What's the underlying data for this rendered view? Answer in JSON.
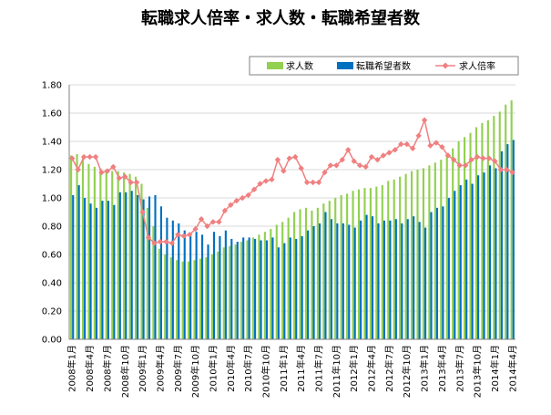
{
  "chart_data": {
    "type": "bar",
    "title": "転職求人倍率・求人数・転職希望者数",
    "ylim": [
      0,
      1.8
    ],
    "yticks": [
      "0.00",
      "0.20",
      "0.40",
      "0.60",
      "0.80",
      "1.00",
      "1.20",
      "1.40",
      "1.60",
      "1.80"
    ],
    "grid": true,
    "legend_position": "top-right",
    "colors": {
      "jobs": "#92d050",
      "seekers": "#0070c0",
      "ratio": "#f08080",
      "grid": "#d9d9d9"
    },
    "x": [
      "2008年1月",
      "2008年2月",
      "2008年3月",
      "2008年4月",
      "2008年5月",
      "2008年6月",
      "2008年7月",
      "2008年8月",
      "2008年9月",
      "2008年10月",
      "2008年11月",
      "2008年12月",
      "2009年1月",
      "2009年2月",
      "2009年3月",
      "2009年4月",
      "2009年5月",
      "2009年6月",
      "2009年7月",
      "2009年8月",
      "2009年9月",
      "2009年10月",
      "2009年11月",
      "2009年12月",
      "2010年1月",
      "2010年2月",
      "2010年3月",
      "2010年4月",
      "2010年5月",
      "2010年6月",
      "2010年7月",
      "2010年8月",
      "2010年9月",
      "2010年10月",
      "2010年11月",
      "2010年12月",
      "2011年1月",
      "2011年2月",
      "2011年3月",
      "2011年4月",
      "2011年5月",
      "2011年6月",
      "2011年7月",
      "2011年8月",
      "2011年9月",
      "2011年10月",
      "2011年11月",
      "2011年12月",
      "2012年1月",
      "2012年2月",
      "2012年3月",
      "2012年4月",
      "2012年5月",
      "2012年6月",
      "2012年7月",
      "2012年8月",
      "2012年9月",
      "2012年10月",
      "2012年11月",
      "2012年12月",
      "2013年1月",
      "2013年2月",
      "2013年3月",
      "2013年4月",
      "2013年5月",
      "2013年6月",
      "2013年7月",
      "2013年8月",
      "2013年9月",
      "2013年10月",
      "2013年11月",
      "2013年12月",
      "2014年1月",
      "2014年2月",
      "2014年3月",
      "2014年4月"
    ],
    "xtick_labels": [
      "2008年1月",
      "2008年4月",
      "2008年7月",
      "2008年10月",
      "2009年1月",
      "2009年4月",
      "2009年7月",
      "2009年10月",
      "2010年1月",
      "2010年4月",
      "2010年7月",
      "2010年10月",
      "2011年1月",
      "2011年4月",
      "2011年7月",
      "2011年10月",
      "2012年1月",
      "2012年4月",
      "2012年7月",
      "2012年10月",
      "2013年1月",
      "2013年4月",
      "2013年7月",
      "2013年10月",
      "2014年1月",
      "2014年4月"
    ],
    "series": [
      {
        "name": "求人数",
        "kind": "bar",
        "values": [
          1.3,
          1.31,
          1.28,
          1.24,
          1.22,
          1.21,
          1.2,
          1.19,
          1.19,
          1.18,
          1.17,
          1.15,
          1.1,
          0.93,
          0.8,
          0.64,
          0.6,
          0.58,
          0.56,
          0.55,
          0.55,
          0.56,
          0.57,
          0.58,
          0.6,
          0.62,
          0.65,
          0.66,
          0.67,
          0.69,
          0.7,
          0.72,
          0.74,
          0.76,
          0.78,
          0.81,
          0.83,
          0.86,
          0.9,
          0.92,
          0.93,
          0.91,
          0.93,
          0.96,
          0.98,
          1.0,
          1.02,
          1.03,
          1.05,
          1.06,
          1.07,
          1.07,
          1.08,
          1.09,
          1.12,
          1.13,
          1.15,
          1.17,
          1.19,
          1.2,
          1.21,
          1.23,
          1.25,
          1.27,
          1.31,
          1.35,
          1.4,
          1.43,
          1.46,
          1.5,
          1.53,
          1.55,
          1.58,
          1.61,
          1.66,
          1.69
        ]
      },
      {
        "name": "転職希望者数",
        "kind": "bar",
        "values": [
          1.02,
          1.09,
          1.0,
          0.96,
          0.93,
          0.98,
          0.98,
          0.95,
          1.04,
          1.04,
          1.05,
          1.02,
          0.99,
          1.01,
          1.02,
          0.94,
          0.86,
          0.84,
          0.82,
          0.77,
          0.73,
          0.76,
          0.74,
          0.67,
          0.76,
          0.73,
          0.77,
          0.71,
          0.69,
          0.72,
          0.72,
          0.71,
          0.7,
          0.7,
          0.72,
          0.65,
          0.68,
          0.72,
          0.71,
          0.73,
          0.77,
          0.8,
          0.82,
          0.9,
          0.85,
          0.82,
          0.82,
          0.81,
          0.79,
          0.84,
          0.88,
          0.87,
          0.82,
          0.84,
          0.84,
          0.85,
          0.82,
          0.85,
          0.87,
          0.83,
          0.79,
          0.9,
          0.93,
          0.94,
          1.0,
          1.05,
          1.09,
          1.13,
          1.1,
          1.16,
          1.18,
          1.23,
          1.21,
          1.33,
          1.38,
          1.41
        ]
      },
      {
        "name": "求人倍率",
        "kind": "line",
        "values": [
          1.28,
          1.2,
          1.29,
          1.29,
          1.29,
          1.18,
          1.19,
          1.22,
          1.14,
          1.15,
          1.11,
          1.11,
          0.9,
          0.72,
          0.68,
          0.69,
          0.69,
          0.68,
          0.74,
          0.73,
          0.74,
          0.78,
          0.85,
          0.8,
          0.83,
          0.83,
          0.91,
          0.95,
          0.98,
          1.0,
          1.02,
          1.06,
          1.1,
          1.12,
          1.13,
          1.27,
          1.19,
          1.28,
          1.29,
          1.21,
          1.11,
          1.11,
          1.11,
          1.18,
          1.23,
          1.23,
          1.27,
          1.34,
          1.26,
          1.23,
          1.22,
          1.29,
          1.27,
          1.3,
          1.32,
          1.34,
          1.38,
          1.38,
          1.35,
          1.44,
          1.55,
          1.37,
          1.39,
          1.36,
          1.3,
          1.27,
          1.23,
          1.23,
          1.27,
          1.29,
          1.28,
          1.28,
          1.26,
          1.2,
          1.2,
          1.18
        ]
      }
    ]
  }
}
